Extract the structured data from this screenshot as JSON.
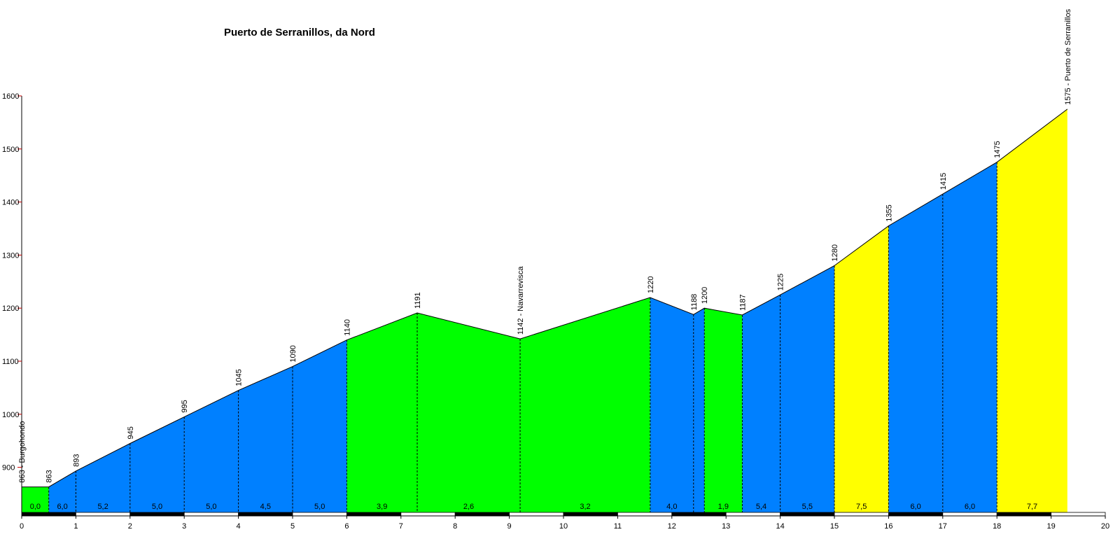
{
  "chart_data": {
    "type": "area",
    "title": "Puerto de Serranillos, da Nord",
    "xlabel": "",
    "ylabel": "",
    "xlim": [
      0,
      20
    ],
    "ylim": [
      815,
      1600
    ],
    "x_ticks": [
      "0",
      "1",
      "2",
      "3",
      "4",
      "5",
      "6",
      "7",
      "8",
      "9",
      "10",
      "11",
      "12",
      "13",
      "14",
      "15",
      "16",
      "17",
      "18",
      "19",
      "20"
    ],
    "y_ticks": [
      "900",
      "1000",
      "1100",
      "1200",
      "1300",
      "1400",
      "1500",
      "1600"
    ],
    "colors": {
      "green": "#00ff00",
      "blue": "#0080ff",
      "yellow": "#ffff00",
      "axis_red": "#cc0000"
    },
    "profile": [
      {
        "x": 0,
        "y": 863
      },
      {
        "x": 0.5,
        "y": 863
      },
      {
        "x": 1,
        "y": 893
      },
      {
        "x": 2,
        "y": 945
      },
      {
        "x": 3,
        "y": 995
      },
      {
        "x": 4,
        "y": 1045
      },
      {
        "x": 5,
        "y": 1090
      },
      {
        "x": 6,
        "y": 1140
      },
      {
        "x": 7.3,
        "y": 1191
      },
      {
        "x": 9.2,
        "y": 1142
      },
      {
        "x": 11.6,
        "y": 1220
      },
      {
        "x": 12.4,
        "y": 1188
      },
      {
        "x": 12.6,
        "y": 1200
      },
      {
        "x": 13.3,
        "y": 1187
      },
      {
        "x": 14,
        "y": 1225
      },
      {
        "x": 15,
        "y": 1280
      },
      {
        "x": 16,
        "y": 1355
      },
      {
        "x": 17,
        "y": 1415
      },
      {
        "x": 18,
        "y": 1475
      },
      {
        "x": 19.3,
        "y": 1575
      }
    ],
    "segments": [
      {
        "x0": 0,
        "x1": 0.5,
        "color": "green",
        "grade": "0,0"
      },
      {
        "x0": 0.5,
        "x1": 1,
        "color": "blue",
        "grade": "6,0"
      },
      {
        "x0": 1,
        "x1": 2,
        "color": "blue",
        "grade": "5,2"
      },
      {
        "x0": 2,
        "x1": 3,
        "color": "blue",
        "grade": "5,0"
      },
      {
        "x0": 3,
        "x1": 4,
        "color": "blue",
        "grade": "5,0"
      },
      {
        "x0": 4,
        "x1": 5,
        "color": "blue",
        "grade": "4,5"
      },
      {
        "x0": 5,
        "x1": 6,
        "color": "blue",
        "grade": "5,0"
      },
      {
        "x0": 6,
        "x1": 7.3,
        "color": "green",
        "grade": "3,9"
      },
      {
        "x0": 7.3,
        "x1": 9.2,
        "color": "green",
        "grade": "2,6"
      },
      {
        "x0": 9.2,
        "x1": 11.6,
        "color": "green",
        "grade": "3,2"
      },
      {
        "x0": 11.6,
        "x1": 12.4,
        "color": "blue",
        "grade": "4,0"
      },
      {
        "x0": 12.4,
        "x1": 12.6,
        "color": "blue",
        "grade": ""
      },
      {
        "x0": 12.6,
        "x1": 13.3,
        "color": "green",
        "grade": "1,9"
      },
      {
        "x0": 13.3,
        "x1": 14,
        "color": "blue",
        "grade": "5,4"
      },
      {
        "x0": 14,
        "x1": 15,
        "color": "blue",
        "grade": "5,5"
      },
      {
        "x0": 15,
        "x1": 16,
        "color": "yellow",
        "grade": "7,5"
      },
      {
        "x0": 16,
        "x1": 17,
        "color": "blue",
        "grade": "6,0"
      },
      {
        "x0": 17,
        "x1": 18,
        "color": "blue",
        "grade": "6,0"
      },
      {
        "x0": 18,
        "x1": 19.3,
        "color": "yellow",
        "grade": "7,7"
      }
    ],
    "point_labels": [
      {
        "x": 0,
        "y": 863,
        "text": "863 - Burgohondo"
      },
      {
        "x": 0.5,
        "y": 863,
        "text": "863"
      },
      {
        "x": 1,
        "y": 893,
        "text": "893"
      },
      {
        "x": 2,
        "y": 945,
        "text": "945"
      },
      {
        "x": 3,
        "y": 995,
        "text": "995"
      },
      {
        "x": 4,
        "y": 1045,
        "text": "1045"
      },
      {
        "x": 5,
        "y": 1090,
        "text": "1090"
      },
      {
        "x": 6,
        "y": 1140,
        "text": "1140"
      },
      {
        "x": 7.3,
        "y": 1191,
        "text": "1191"
      },
      {
        "x": 9.2,
        "y": 1142,
        "text": "1142 - Navarrevisca"
      },
      {
        "x": 11.6,
        "y": 1220,
        "text": "1220"
      },
      {
        "x": 12.4,
        "y": 1188,
        "text": "1188"
      },
      {
        "x": 12.6,
        "y": 1200,
        "text": "1200"
      },
      {
        "x": 13.3,
        "y": 1187,
        "text": "1187"
      },
      {
        "x": 14,
        "y": 1225,
        "text": "1225"
      },
      {
        "x": 15,
        "y": 1280,
        "text": "1280"
      },
      {
        "x": 16,
        "y": 1355,
        "text": "1355"
      },
      {
        "x": 17,
        "y": 1415,
        "text": "1415"
      },
      {
        "x": 18,
        "y": 1475,
        "text": "1475"
      },
      {
        "x": 19.3,
        "y": 1575,
        "text": "1575 - Puerto de Serranillos"
      }
    ],
    "grid": false,
    "legend": "none"
  }
}
